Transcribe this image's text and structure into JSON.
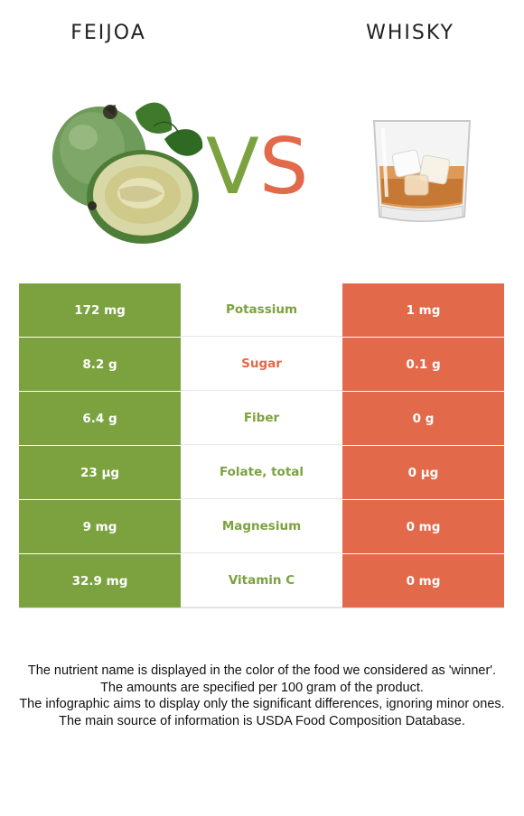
{
  "header": {
    "left_food": "FEIJOA",
    "right_food": "WHISKY",
    "vs_v": "V",
    "vs_s": "S"
  },
  "colors": {
    "left": "#7ba23f",
    "right": "#e2694a"
  },
  "images": {
    "left": "feijoa-fruit-image",
    "right": "whisky-glass-image"
  },
  "nutrients": [
    {
      "left": "172 mg",
      "name": "Potassium",
      "right": "1 mg",
      "winner": "left"
    },
    {
      "left": "8.2 g",
      "name": "Sugar",
      "right": "0.1 g",
      "winner": "right"
    },
    {
      "left": "6.4 g",
      "name": "Fiber",
      "right": "0 g",
      "winner": "left"
    },
    {
      "left": "23 µg",
      "name": "Folate, total",
      "right": "0 µg",
      "winner": "left"
    },
    {
      "left": "9 mg",
      "name": "Magnesium",
      "right": "0 mg",
      "winner": "left"
    },
    {
      "left": "32.9 mg",
      "name": "Vitamin C",
      "right": "0 mg",
      "winner": "left"
    }
  ],
  "footer": {
    "line1": "The nutrient name is displayed in the color of the food we considered as 'winner'.",
    "line2": "The amounts are specified per 100 gram of the product.",
    "line3": "The infographic aims to display only the significant differences, ignoring minor ones.",
    "line4": "The main source of information is USDA Food Composition Database."
  }
}
